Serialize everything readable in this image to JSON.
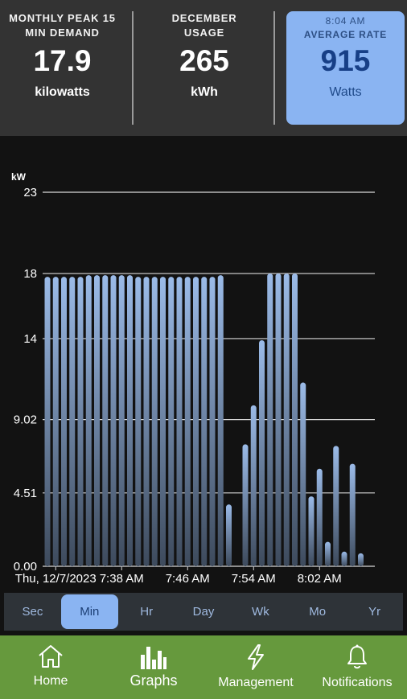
{
  "stats": {
    "peak": {
      "label_line1": "MONTHLY PEAK 15",
      "label_line2": "MIN DEMAND",
      "value": "17.9",
      "unit": "kilowatts"
    },
    "usage": {
      "label_line1": "DECEMBER",
      "label_line2": "USAGE",
      "value": "265",
      "unit": "kWh"
    },
    "rate": {
      "time": "8:04 AM",
      "label": "AVERAGE RATE",
      "value": "915",
      "unit": "Watts"
    }
  },
  "ranges": [
    "Sec",
    "Min",
    "Hr",
    "Day",
    "Wk",
    "Mo",
    "Yr"
  ],
  "selected_range": "Min",
  "nav": [
    {
      "label": "Home",
      "icon": "home-icon"
    },
    {
      "label": "Graphs",
      "icon": "bar-chart-icon"
    },
    {
      "label": "Management",
      "icon": "lightning-icon"
    },
    {
      "label": "Notifications",
      "icon": "bell-icon"
    }
  ],
  "selected_nav": "Graphs",
  "colors": {
    "bar_top": "#9bbbe8",
    "bar_bottom": "#3d4a5c",
    "accent": "#8ab4f2",
    "nav_bg": "#66993d"
  },
  "chart_data": {
    "type": "bar",
    "title": "",
    "ylabel": "kW",
    "ylim": [
      0,
      23
    ],
    "y_ticks": [
      "23",
      "18",
      "14",
      "9.02",
      "4.51",
      "0.00"
    ],
    "y_tick_values": [
      23,
      18,
      14,
      9.02,
      4.51,
      0
    ],
    "x_tick_labels": [
      "Thu, 12/7/2023",
      "7:38 AM",
      "7:46 AM",
      "7:54 AM",
      "8:02 AM"
    ],
    "x_tick_minutes": [
      30,
      38,
      46,
      54,
      62
    ],
    "x_start_minute": 29,
    "x_end_minute": 69,
    "grid": true,
    "bars": [
      {
        "minute": 29,
        "value": 17.8
      },
      {
        "minute": 30,
        "value": 17.8
      },
      {
        "minute": 31,
        "value": 17.8
      },
      {
        "minute": 32,
        "value": 17.8
      },
      {
        "minute": 33,
        "value": 17.8
      },
      {
        "minute": 34,
        "value": 17.9
      },
      {
        "minute": 35,
        "value": 17.9
      },
      {
        "minute": 36,
        "value": 17.9
      },
      {
        "minute": 37,
        "value": 17.9
      },
      {
        "minute": 38,
        "value": 17.9
      },
      {
        "minute": 39,
        "value": 17.9
      },
      {
        "minute": 40,
        "value": 17.8
      },
      {
        "minute": 41,
        "value": 17.8
      },
      {
        "minute": 42,
        "value": 17.8
      },
      {
        "minute": 43,
        "value": 17.8
      },
      {
        "minute": 44,
        "value": 17.8
      },
      {
        "minute": 45,
        "value": 17.8
      },
      {
        "minute": 46,
        "value": 17.8
      },
      {
        "minute": 47,
        "value": 17.8
      },
      {
        "minute": 48,
        "value": 17.8
      },
      {
        "minute": 49,
        "value": 17.8
      },
      {
        "minute": 50,
        "value": 17.9
      },
      {
        "minute": 51,
        "value": 3.8
      },
      {
        "minute": 53,
        "value": 7.5
      },
      {
        "minute": 54,
        "value": 9.9
      },
      {
        "minute": 55,
        "value": 13.9
      },
      {
        "minute": 56,
        "value": 18.0
      },
      {
        "minute": 57,
        "value": 18.0
      },
      {
        "minute": 58,
        "value": 18.0
      },
      {
        "minute": 59,
        "value": 18.0
      },
      {
        "minute": 60,
        "value": 11.3
      },
      {
        "minute": 61,
        "value": 4.3
      },
      {
        "minute": 62,
        "value": 6.0
      },
      {
        "minute": 63,
        "value": 1.5
      },
      {
        "minute": 64,
        "value": 7.4
      },
      {
        "minute": 65,
        "value": 0.9
      },
      {
        "minute": 66,
        "value": 6.3
      },
      {
        "minute": 67,
        "value": 0.8
      }
    ]
  }
}
